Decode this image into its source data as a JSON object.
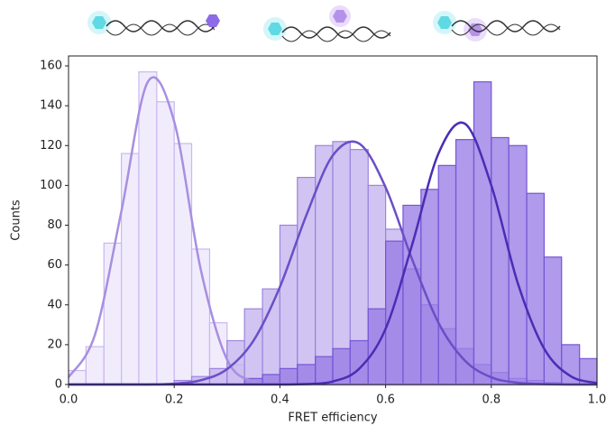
{
  "chart_data": {
    "type": "histogram",
    "x_label": "FRET efficiency",
    "y_label": "Counts",
    "bins": [
      0,
      0.033,
      0.067,
      0.1,
      0.133,
      0.167,
      0.2,
      0.233,
      0.267,
      0.3,
      0.333,
      0.367,
      0.4,
      0.433,
      0.467,
      0.5,
      0.533,
      0.567,
      0.6,
      0.633,
      0.667,
      0.7,
      0.733,
      0.767,
      0.8,
      0.833,
      0.867,
      0.9,
      0.933,
      0.967,
      1.0
    ],
    "series": [
      {
        "color": "#ece5fb",
        "values": [
          7,
          19,
          71,
          116,
          157,
          142,
          121,
          68,
          31,
          10,
          3,
          1,
          0,
          0,
          0,
          0,
          0,
          0,
          0,
          0,
          0,
          0,
          0,
          0,
          0,
          0,
          0,
          0,
          0,
          0
        ]
      },
      {
        "color": "#c2b0ee",
        "values": [
          0,
          0,
          0,
          0,
          0,
          0,
          2,
          4,
          8,
          22,
          38,
          48,
          80,
          104,
          120,
          122,
          118,
          100,
          78,
          58,
          40,
          28,
          18,
          10,
          6,
          3,
          2,
          1,
          0,
          0
        ]
      },
      {
        "color": "#9478e4",
        "values": [
          0,
          0,
          0,
          0,
          0,
          0,
          0,
          0,
          0,
          0,
          3,
          5,
          8,
          10,
          14,
          18,
          22,
          38,
          72,
          90,
          98,
          110,
          123,
          152,
          124,
          120,
          96,
          64,
          20,
          13
        ]
      }
    ],
    "fit_x": [
      0,
      0.05,
      0.1,
      0.15,
      0.2,
      0.25,
      0.3,
      0.35,
      0.4,
      0.45,
      0.5,
      0.55,
      0.6,
      0.65,
      0.7,
      0.75,
      0.8,
      0.85,
      0.9,
      0.95,
      1.0
    ],
    "fits": [
      {
        "color": "#a78fe0",
        "values": [
          3.6,
          25,
          87,
          152,
          132,
          58,
          12.5,
          1.4,
          0.1,
          0,
          0,
          0,
          0,
          0,
          0,
          0,
          0,
          0,
          0,
          0,
          0
        ]
      },
      {
        "color": "#6a4fc6",
        "values": [
          0,
          0,
          0,
          0,
          0.4,
          2.1,
          7.7,
          22,
          49,
          85,
          115,
          121,
          99,
          63,
          31,
          12,
          3.6,
          0.9,
          0.2,
          0,
          0
        ]
      },
      {
        "color": "#4a2db4",
        "values": [
          0,
          0,
          0,
          0,
          0,
          0,
          0,
          0,
          0,
          0.2,
          1.5,
          7.9,
          28,
          70,
          116,
          131,
          100,
          51,
          18,
          4.2,
          0.7
        ]
      }
    ],
    "xlim": [
      0,
      1.0
    ],
    "xticks": [
      {
        "value": 0,
        "label": "0.0"
      },
      0.2,
      0.4,
      0.6,
      0.8,
      {
        "value": 1.0,
        "label": "1.0"
      }
    ],
    "ylim": [
      0,
      165
    ],
    "yticks": [
      0,
      20,
      40,
      60,
      80,
      100,
      120,
      140,
      160
    ]
  }
}
